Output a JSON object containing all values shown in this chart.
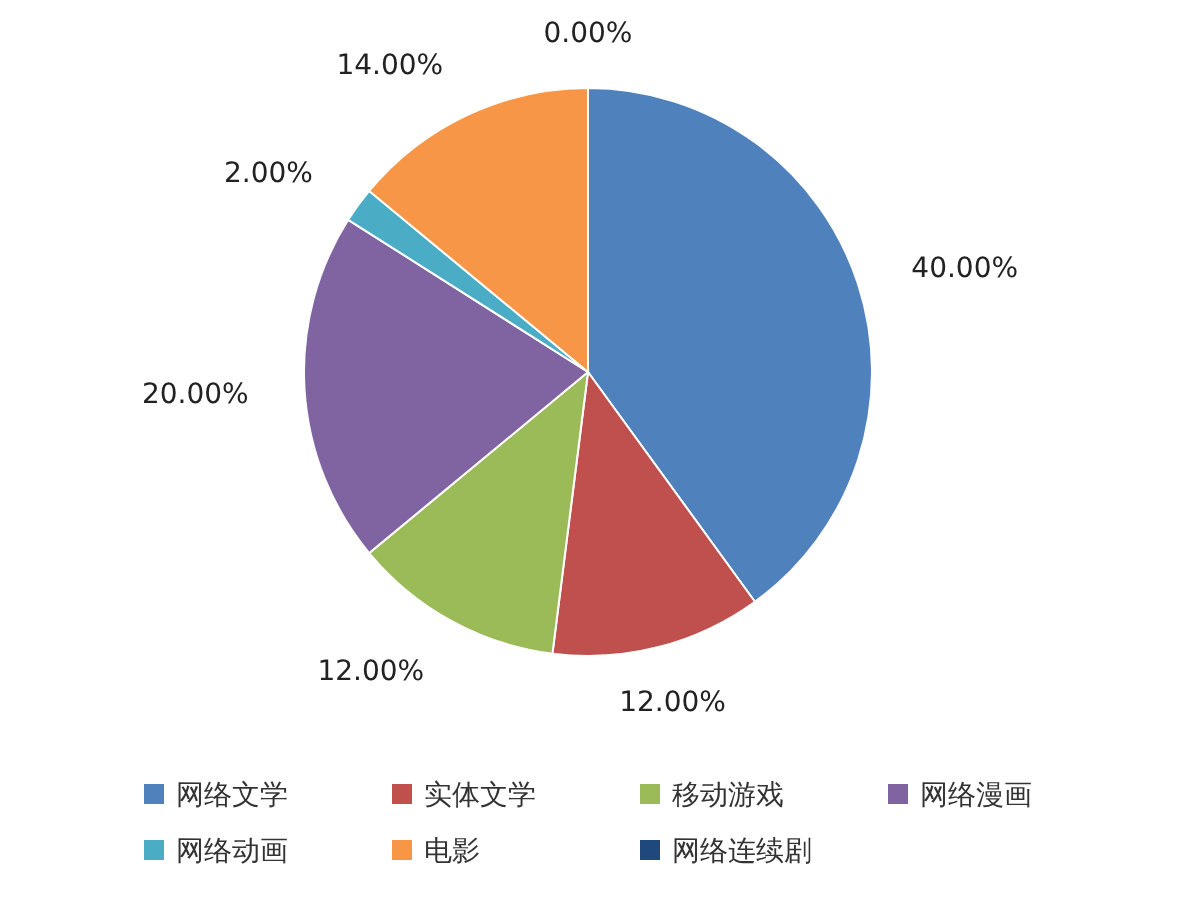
{
  "chart_data": {
    "type": "pie",
    "categories": [
      "网络文学",
      "实体文学",
      "移动游戏",
      "网络漫画",
      "网络动画",
      "电影",
      "网络连续剧"
    ],
    "values": [
      40,
      12,
      12,
      20,
      2,
      14,
      0
    ],
    "value_labels": [
      "40.00%",
      "12.00%",
      "12.00%",
      "20.00%",
      "2.00%",
      "14.00%",
      "0.00%"
    ],
    "colors": [
      "#4f81bd",
      "#c0504d",
      "#9bbb59",
      "#8064a2",
      "#4bacc6",
      "#f79646",
      "#1f497d"
    ],
    "legend": "bottom"
  }
}
